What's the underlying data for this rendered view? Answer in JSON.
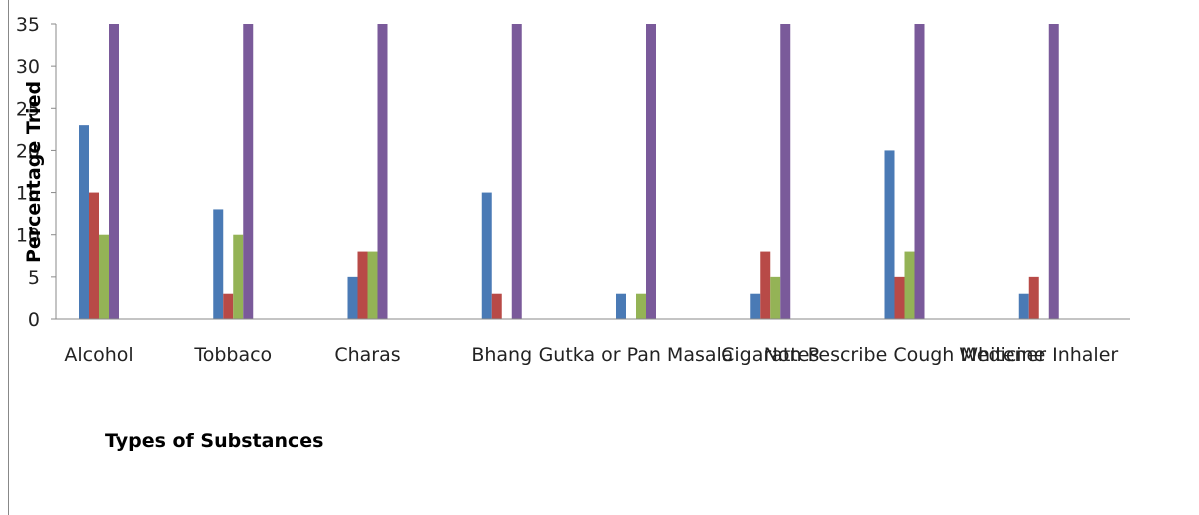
{
  "chart_data": {
    "type": "bar",
    "title": "",
    "xlabel": "Types of Substances",
    "ylabel": "Percentage Tried",
    "ylim": [
      0,
      35
    ],
    "yticks": [
      0,
      5,
      10,
      15,
      20,
      25,
      30,
      35
    ],
    "grid": false,
    "legend": "none",
    "categories": [
      "Alcohol",
      "Tobbaco",
      "Charas",
      "Bhang",
      "Gutka or Pan Masala",
      "Cigarattes",
      "Non Pescribe Cough Medicine",
      "Whitener Inhaler"
    ],
    "series": [
      {
        "color": "#4a7ab5",
        "values": [
          23,
          13,
          5,
          15,
          3,
          3,
          20,
          3
        ]
      },
      {
        "color": "#b84a47",
        "values": [
          15,
          3,
          8,
          3,
          0,
          8,
          5,
          5
        ]
      },
      {
        "color": "#94b356",
        "values": [
          10,
          10,
          8,
          0,
          3,
          5,
          8,
          0
        ]
      },
      {
        "color": "#7a5a9a",
        "values": [
          35,
          35,
          35,
          35,
          35,
          35,
          35,
          35
        ]
      }
    ]
  }
}
